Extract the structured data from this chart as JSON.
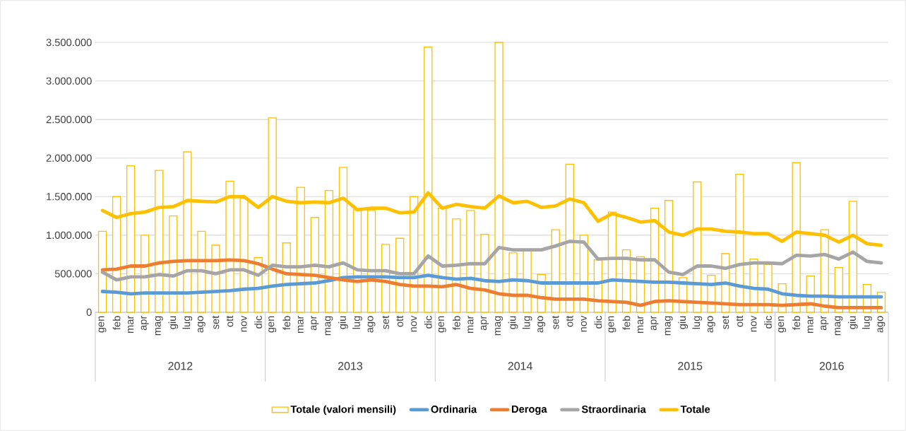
{
  "chart_data": {
    "type": "bar",
    "categories": [
      "gen",
      "feb",
      "mar",
      "apr",
      "mag",
      "giu",
      "lug",
      "ago",
      "set",
      "ott",
      "nov",
      "dic",
      "gen",
      "feb",
      "mar",
      "apr",
      "mag",
      "giu",
      "lug",
      "ago",
      "set",
      "ott",
      "nov",
      "dic",
      "gen",
      "feb",
      "mar",
      "apr",
      "mag",
      "giu",
      "lug",
      "ago",
      "set",
      "ott",
      "nov",
      "dic",
      "gen",
      "feb",
      "mar",
      "apr",
      "mag",
      "giu",
      "lug",
      "ago",
      "set",
      "ott",
      "nov",
      "dic",
      "gen",
      "feb",
      "mar",
      "apr",
      "mag",
      "giu",
      "lug",
      "ago"
    ],
    "annotations": [
      "2012",
      "2013",
      "2014",
      "2015",
      "2016"
    ],
    "series": [
      {
        "name": "Totale (valori mensili)",
        "color": "#ffc000",
        "values": [
          1050000,
          1500000,
          1900000,
          1000000,
          1840000,
          1250000,
          2080000,
          1050000,
          870000,
          1700000,
          1480000,
          710000,
          2520000,
          900000,
          1620000,
          1230000,
          1580000,
          1880000,
          1330000,
          1320000,
          880000,
          960000,
          1500000,
          3440000,
          1350000,
          1210000,
          1320000,
          1010000,
          3500000,
          770000,
          800000,
          490000,
          1070000,
          1920000,
          1000000,
          680000,
          1300000,
          810000,
          720000,
          1350000,
          1450000,
          450000,
          1690000,
          480000,
          760000,
          1790000,
          690000,
          620000,
          370000,
          1940000,
          470000,
          1070000,
          580000,
          1440000,
          360000,
          260000
        ]
      },
      {
        "name": "Ordinaria",
        "type": "line",
        "color": "#5b9bd5",
        "values": [
          270000,
          260000,
          240000,
          250000,
          250000,
          250000,
          250000,
          260000,
          270000,
          280000,
          300000,
          310000,
          340000,
          360000,
          370000,
          380000,
          410000,
          450000,
          460000,
          460000,
          460000,
          450000,
          450000,
          480000,
          450000,
          430000,
          440000,
          410000,
          400000,
          420000,
          410000,
          380000,
          380000,
          380000,
          380000,
          380000,
          420000,
          410000,
          400000,
          390000,
          390000,
          380000,
          370000,
          360000,
          380000,
          340000,
          310000,
          300000,
          240000,
          220000,
          210000,
          210000,
          200000,
          200000,
          200000,
          200000
        ]
      },
      {
        "name": "Deroga",
        "type": "line",
        "color": "#ed7d31",
        "values": [
          550000,
          560000,
          600000,
          600000,
          640000,
          660000,
          670000,
          670000,
          670000,
          680000,
          670000,
          630000,
          560000,
          500000,
          490000,
          480000,
          450000,
          420000,
          400000,
          420000,
          400000,
          360000,
          340000,
          340000,
          330000,
          360000,
          310000,
          290000,
          240000,
          220000,
          220000,
          190000,
          170000,
          170000,
          170000,
          150000,
          140000,
          130000,
          90000,
          140000,
          150000,
          140000,
          130000,
          120000,
          110000,
          100000,
          100000,
          100000,
          90000,
          100000,
          110000,
          80000,
          60000,
          60000,
          60000,
          60000
        ]
      },
      {
        "name": "Straordinaria",
        "type": "line",
        "color": "#a5a5a5",
        "values": [
          520000,
          420000,
          460000,
          460000,
          490000,
          470000,
          540000,
          540000,
          500000,
          550000,
          550000,
          480000,
          610000,
          590000,
          590000,
          610000,
          590000,
          640000,
          550000,
          540000,
          540000,
          500000,
          500000,
          730000,
          600000,
          610000,
          630000,
          630000,
          840000,
          810000,
          810000,
          810000,
          860000,
          920000,
          910000,
          690000,
          700000,
          700000,
          680000,
          680000,
          520000,
          490000,
          600000,
          600000,
          570000,
          620000,
          640000,
          640000,
          630000,
          740000,
          730000,
          750000,
          690000,
          780000,
          660000,
          640000
        ]
      },
      {
        "name": "Totale",
        "type": "line",
        "color": "#ffc000",
        "values": [
          1320000,
          1230000,
          1280000,
          1300000,
          1360000,
          1370000,
          1450000,
          1440000,
          1430000,
          1500000,
          1500000,
          1360000,
          1500000,
          1440000,
          1420000,
          1430000,
          1420000,
          1480000,
          1330000,
          1350000,
          1350000,
          1290000,
          1300000,
          1550000,
          1350000,
          1400000,
          1370000,
          1350000,
          1510000,
          1420000,
          1440000,
          1360000,
          1380000,
          1470000,
          1420000,
          1180000,
          1280000,
          1230000,
          1170000,
          1190000,
          1040000,
          1000000,
          1080000,
          1080000,
          1050000,
          1040000,
          1020000,
          1020000,
          920000,
          1040000,
          1020000,
          1000000,
          910000,
          1000000,
          890000,
          870000
        ]
      }
    ],
    "ylim": [
      0,
      3500000
    ],
    "yticks": [
      0,
      {
        "value": 500000,
        "label": "500.000"
      },
      {
        "value": 1000000,
        "label": "1.000.000"
      },
      {
        "value": 1500000,
        "label": "1.500.000"
      },
      {
        "value": 2000000,
        "label": "2.000.000"
      },
      {
        "value": 2500000,
        "label": "2.500.000"
      },
      {
        "value": 3000000,
        "label": "3.000.000"
      },
      {
        "value": 3500000,
        "label": "3.500.000"
      }
    ],
    "grid": "y",
    "legend": "bottom"
  }
}
